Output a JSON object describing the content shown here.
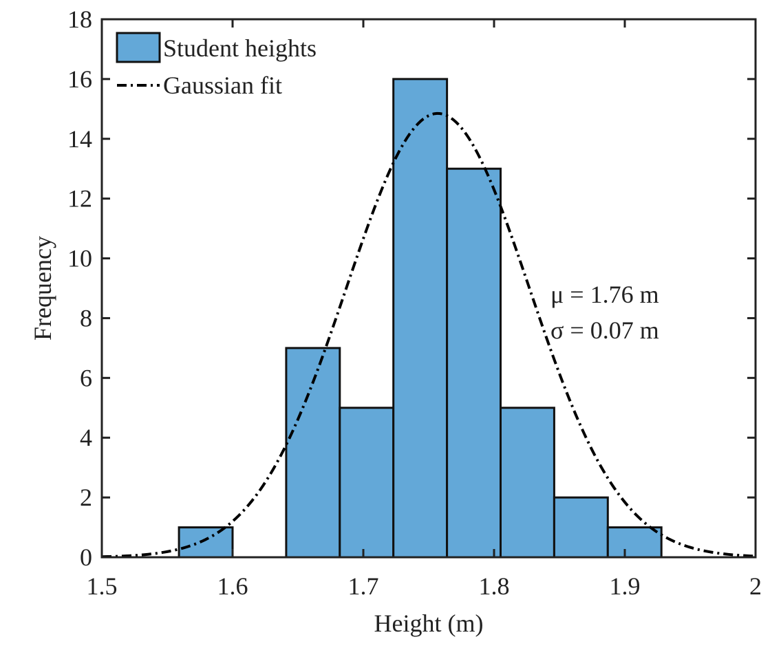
{
  "chart_data": {
    "type": "bar",
    "subtype": "histogram",
    "xlabel": "Height (m)",
    "ylabel": "Frequency",
    "xlim": [
      1.5,
      2.0
    ],
    "ylim": [
      0,
      18
    ],
    "xticks": [
      1.5,
      1.6,
      1.7,
      1.8,
      1.9,
      2.0
    ],
    "xtick_labels": [
      "1.5",
      "1.6",
      "1.7",
      "1.8",
      "1.9",
      "2"
    ],
    "yticks": [
      0,
      2,
      4,
      6,
      8,
      10,
      12,
      14,
      16,
      18
    ],
    "ytick_labels": [
      "0",
      "2",
      "4",
      "6",
      "8",
      "10",
      "12",
      "14",
      "16",
      "18"
    ],
    "grid": false,
    "legend_position": "top-left",
    "bin_edges": [
      1.559,
      1.6,
      1.641,
      1.682,
      1.723,
      1.764,
      1.805,
      1.846,
      1.887,
      1.928
    ],
    "values": [
      1,
      0,
      7,
      5,
      16,
      13,
      5,
      2,
      1
    ],
    "series": [
      {
        "name": "Student heights",
        "kind": "histogram",
        "color": "#63A8D8",
        "edge_color": "#111111"
      },
      {
        "name": "Gaussian fit",
        "kind": "line",
        "line_style": "dash-dot",
        "color": "#000000",
        "mu": 1.757,
        "sigma": 0.07,
        "peak": 14.85
      }
    ],
    "annotations": [
      "μ = 1.76 m",
      "σ = 0.07 m"
    ]
  }
}
